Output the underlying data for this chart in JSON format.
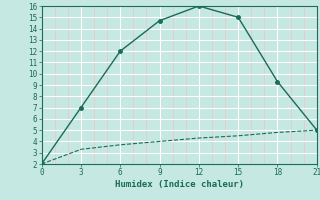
{
  "xlabel": "Humidex (Indice chaleur)",
  "line1_x": [
    0,
    3,
    6,
    9,
    12,
    15,
    18,
    21
  ],
  "line1_y": [
    2,
    7,
    12,
    14.7,
    16,
    15,
    9.3,
    5
  ],
  "line2_x": [
    0,
    3,
    6,
    9,
    12,
    15,
    18,
    21
  ],
  "line2_y": [
    2,
    3.3,
    3.7,
    4.0,
    4.3,
    4.5,
    4.8,
    5.0
  ],
  "line_color": "#1a6b5a",
  "bg_color": "#c5e8e2",
  "major_grid_color": "#ffffff",
  "minor_grid_color": "#e8c8c8",
  "xlim": [
    0,
    21
  ],
  "ylim": [
    2,
    16
  ],
  "xticks": [
    0,
    3,
    6,
    9,
    12,
    15,
    18,
    21
  ],
  "yticks": [
    2,
    3,
    4,
    5,
    6,
    7,
    8,
    9,
    10,
    11,
    12,
    13,
    14,
    15,
    16
  ]
}
